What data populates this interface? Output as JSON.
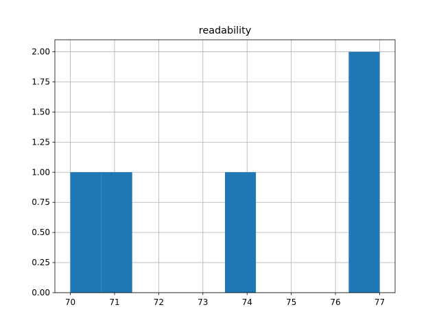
{
  "chart_data": {
    "type": "histogram",
    "title": "readability",
    "bins": [
      70,
      70.7,
      71.4,
      72.1,
      72.8,
      73.5,
      74.2,
      74.9,
      75.6,
      76.3,
      77
    ],
    "counts": [
      1,
      1,
      0,
      0,
      0,
      1,
      0,
      0,
      0,
      2
    ],
    "color": "#1f77b4",
    "xlim": [
      69.65,
      77.35
    ],
    "xticks": [
      70,
      71,
      72,
      73,
      74,
      75,
      76,
      77
    ],
    "ylim": [
      0,
      2.1
    ],
    "yticks": [
      {
        "value": 0,
        "label": "0.00"
      },
      {
        "value": 0.25,
        "label": "0.25"
      },
      {
        "value": 0.5,
        "label": "0.50"
      },
      {
        "value": 0.75,
        "label": "0.75"
      },
      {
        "value": 1,
        "label": "1.00"
      },
      {
        "value": 1.25,
        "label": "1.25"
      },
      {
        "value": 1.5,
        "label": "1.50"
      },
      {
        "value": 1.75,
        "label": "1.75"
      },
      {
        "value": 2,
        "label": "2.00"
      }
    ],
    "grid": true
  }
}
